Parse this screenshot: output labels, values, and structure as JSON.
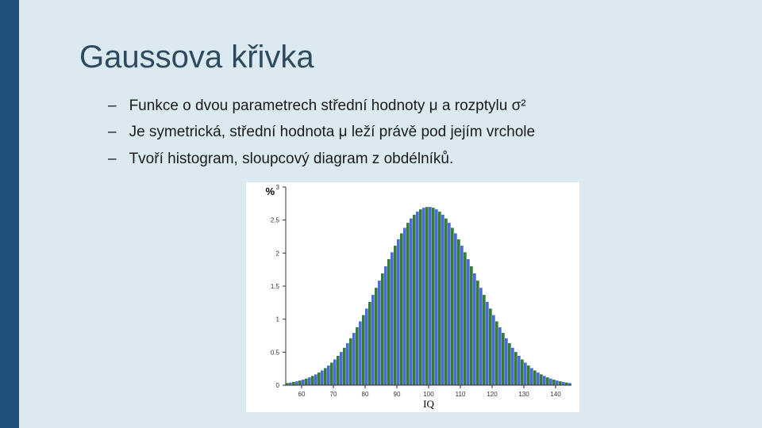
{
  "title": "Gaussova křivka",
  "bullets": [
    "Funkce o dvou parametrech střední hodnoty μ a rozptylu σ²",
    "Je symetrická, střední hodnota μ leží právě pod jejím vrchole",
    "Tvoří histogram, sloupcový diagram z obdélníků."
  ],
  "chart": {
    "type": "histogram",
    "x_axis_label": "IQ",
    "y_axis_label": "%",
    "xlim": [
      55,
      145
    ],
    "ylim": [
      0,
      3
    ],
    "x_ticks": [
      60,
      70,
      80,
      90,
      100,
      110,
      120,
      130,
      140
    ],
    "y_ticks": [
      0,
      0.5,
      1,
      1.5,
      2,
      2.5,
      3
    ],
    "background_color": "#ffffff",
    "axis_color": "#333333",
    "tick_fontsize": 8,
    "label_fontsize": 13,
    "bar_colors": [
      "#3a7a3a",
      "#4a6fd0"
    ],
    "bars": {
      "x_start": 55,
      "x_end": 145,
      "count": 90,
      "mu": 100,
      "sigma": 15,
      "peak_pct": 2.7
    }
  }
}
